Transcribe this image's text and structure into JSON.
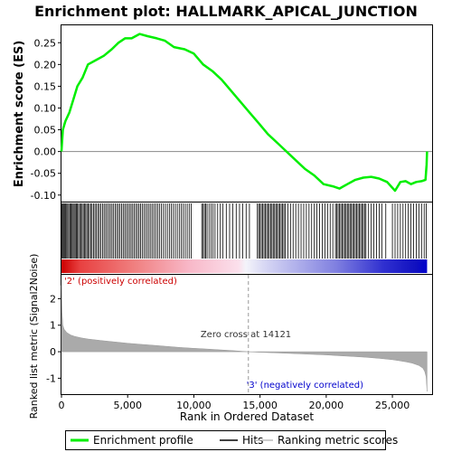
{
  "chart_data": {
    "type": "line",
    "title": "Enrichment plot: HALLMARK_APICAL_JUNCTION",
    "xlabel": "Rank in Ordered Dataset",
    "xlim": [
      0,
      28000
    ],
    "xticks": [
      0,
      5000,
      10000,
      15000,
      20000,
      25000
    ],
    "xtick_labels": [
      "0",
      "5,000",
      "10,000",
      "15,000",
      "20,000",
      "25,000"
    ],
    "enrichment": {
      "ylabel": "Enrichment score (ES)",
      "ylim": [
        -0.115,
        0.29
      ],
      "yticks": [
        -0.1,
        -0.05,
        0.0,
        0.05,
        0.1,
        0.15,
        0.2,
        0.25
      ],
      "ytick_labels": [
        "-0.10",
        "-0.05",
        "0.00",
        "0.05",
        "0.10",
        "0.15",
        "0.20",
        "0.25"
      ],
      "color": "#00ee00",
      "series": [
        {
          "x": [
            0,
            100,
            300,
            600,
            900,
            1200,
            1600,
            2000,
            2600,
            3200,
            3800,
            4300,
            4800,
            5300,
            5900,
            6500,
            7200,
            7800,
            8500,
            9300,
            10000,
            10700,
            11400,
            12100,
            12800,
            13500,
            14200,
            14900,
            15600,
            16300,
            17000,
            17700,
            18400,
            19100,
            19800,
            20500,
            21000,
            21600,
            22200,
            22800,
            23400,
            24000,
            24600,
            25200,
            25600,
            26000,
            26400,
            26800,
            27200,
            27500,
            27580,
            27620
          ],
          "y": [
            0.0,
            0.05,
            0.07,
            0.09,
            0.12,
            0.15,
            0.17,
            0.2,
            0.21,
            0.22,
            0.235,
            0.25,
            0.26,
            0.26,
            0.27,
            0.265,
            0.26,
            0.255,
            0.24,
            0.235,
            0.225,
            0.2,
            0.185,
            0.165,
            0.14,
            0.115,
            0.09,
            0.065,
            0.04,
            0.02,
            0.0,
            -0.02,
            -0.04,
            -0.055,
            -0.075,
            -0.08,
            -0.085,
            -0.075,
            -0.065,
            -0.06,
            -0.058,
            -0.062,
            -0.07,
            -0.09,
            -0.07,
            -0.068,
            -0.075,
            -0.07,
            -0.068,
            -0.065,
            -0.03,
            0.0
          ]
        }
      ]
    },
    "hits": {
      "positions": [
        30,
        90,
        160,
        230,
        310,
        390,
        470,
        550,
        640,
        720,
        800,
        880,
        960,
        1040,
        1120,
        1200,
        1290,
        1380,
        1470,
        1560,
        1650,
        1740,
        1830,
        1920,
        2010,
        2110,
        2210,
        2310,
        2420,
        2530,
        2640,
        2750,
        2860,
        2980,
        3100,
        3220,
        3340,
        3460,
        3580,
        3700,
        3820,
        3940,
        4060,
        4180,
        4300,
        4420,
        4540,
        4660,
        4780,
        4900,
        5020,
        5140,
        5260,
        5380,
        5500,
        5620,
        5740,
        5860,
        5980,
        6100,
        6230,
        6360,
        6490,
        6620,
        6750,
        6880,
        7010,
        7140,
        7270,
        7400,
        7550,
        7700,
        7850,
        8000,
        8150,
        8300,
        8450,
        8600,
        8750,
        8900,
        9050,
        9200,
        9350,
        9500,
        9650,
        9800,
        10600,
        10700,
        10800,
        10900,
        11000,
        11150,
        11300,
        11450,
        11600,
        11800,
        12000,
        12200,
        12450,
        12700,
        12950,
        13200,
        13450,
        13700,
        13950,
        14200,
        14800,
        14900,
        15000,
        15100,
        15200,
        15300,
        15400,
        15500,
        15600,
        15700,
        15800,
        15900,
        16000,
        16100,
        16200,
        16300,
        16400,
        16500,
        16600,
        16700,
        16800,
        16900,
        17100,
        17300,
        17500,
        17700,
        17900,
        18100,
        18300,
        18500,
        18700,
        18900,
        19100,
        19300,
        19500,
        19700,
        19900,
        20100,
        20300,
        20500,
        20700,
        20800,
        20900,
        21000,
        21100,
        21200,
        21300,
        21400,
        21500,
        21600,
        21700,
        21800,
        21900,
        22000,
        22100,
        22200,
        22300,
        22400,
        22500,
        22600,
        22700,
        22800,
        22900,
        23000,
        23200,
        23400,
        23600,
        23800,
        24000,
        24200,
        24500,
        25000,
        25200,
        25400,
        25600,
        25800,
        26000,
        26200,
        26400,
        26600,
        26800,
        27000,
        27200,
        27400,
        27550
      ]
    },
    "ranking": {
      "ylabel": "Ranked list metric (Signal2Noise)",
      "ylim": [
        -1.6,
        2.9
      ],
      "yticks": [
        -1,
        0,
        1,
        2
      ],
      "ytick_labels": [
        "-1",
        "0",
        "1",
        "2"
      ],
      "x": [
        0,
        40,
        100,
        200,
        400,
        700,
        1000,
        1500,
        2000,
        3000,
        4000,
        5000,
        6000,
        7000,
        8000,
        9000,
        10000,
        11000,
        12000,
        13000,
        14121,
        15000,
        16000,
        17000,
        18000,
        19000,
        20000,
        21000,
        22000,
        23000,
        24000,
        25000,
        25500,
        26000,
        26500,
        27000,
        27300,
        27450,
        27550,
        27620
      ],
      "values": [
        2.5,
        1.5,
        1.0,
        0.85,
        0.72,
        0.63,
        0.58,
        0.52,
        0.48,
        0.42,
        0.37,
        0.32,
        0.28,
        0.24,
        0.2,
        0.16,
        0.13,
        0.1,
        0.07,
        0.04,
        0.0,
        -0.02,
        -0.04,
        -0.06,
        -0.08,
        -0.1,
        -0.12,
        -0.15,
        -0.18,
        -0.21,
        -0.25,
        -0.3,
        -0.34,
        -0.38,
        -0.43,
        -0.52,
        -0.62,
        -0.75,
        -0.95,
        -1.5
      ],
      "zero_cross": 14121,
      "zero_cross_label": "Zero cross at 14121",
      "pos_label": "'2' (positively correlated)",
      "neg_label": "'3' (negatively correlated)",
      "pos_color": "#cc0000",
      "neg_color": "#0000cc"
    },
    "legend": {
      "placement": "bottom",
      "entries": [
        {
          "label": "Enrichment profile",
          "color": "#00ee00",
          "kind": "line-thick"
        },
        {
          "label": "Hits",
          "color": "#000000",
          "kind": "line"
        },
        {
          "label": "Ranking metric scores",
          "color": "#bbbbbb",
          "kind": "line"
        }
      ]
    }
  }
}
